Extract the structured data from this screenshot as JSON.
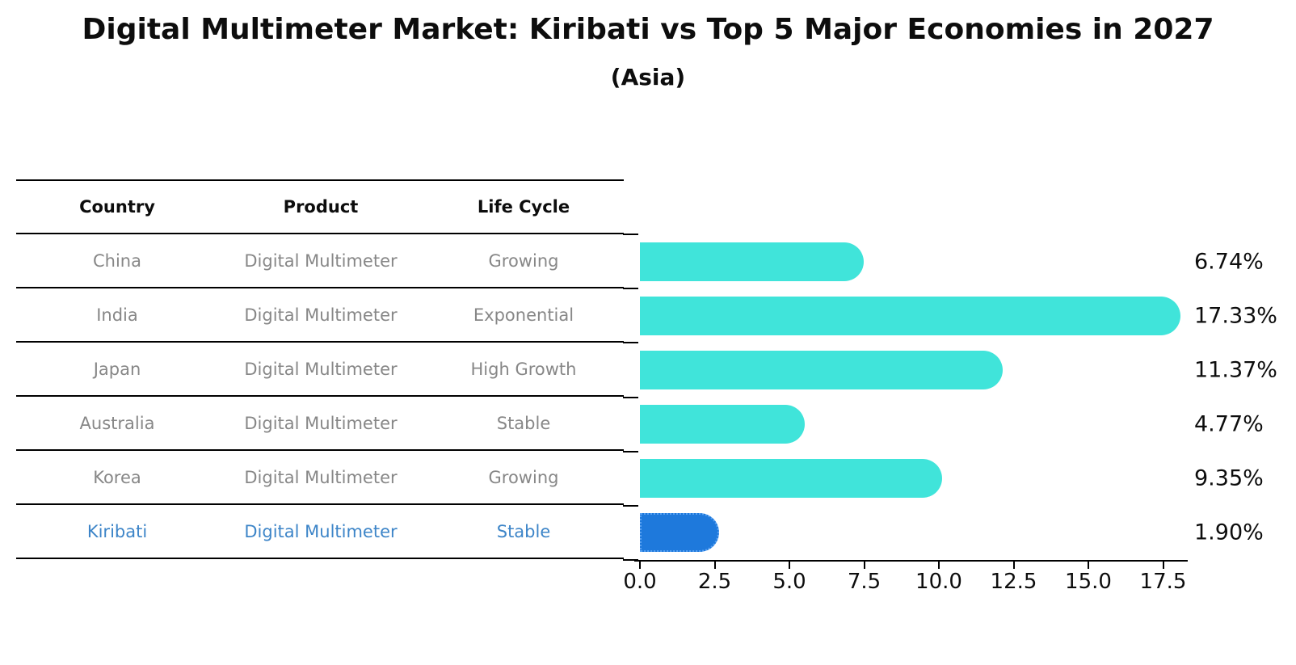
{
  "title": "Digital Multimeter Market: Kiribati vs Top 5 Major Economies in 2027",
  "subtitle": "(Asia)",
  "table": {
    "headers": [
      "Country",
      "Product",
      "Life Cycle"
    ],
    "rows": [
      {
        "country": "China",
        "product": "Digital Multimeter",
        "life_cycle": "Growing",
        "highlight": false
      },
      {
        "country": "India",
        "product": "Digital Multimeter",
        "life_cycle": "Exponential",
        "highlight": false
      },
      {
        "country": "Japan",
        "product": "Digital Multimeter",
        "life_cycle": "High Growth",
        "highlight": false
      },
      {
        "country": "Australia",
        "product": "Digital Multimeter",
        "life_cycle": "Stable",
        "highlight": false
      },
      {
        "country": "Korea",
        "product": "Digital Multimeter",
        "life_cycle": "Growing",
        "highlight": false
      },
      {
        "country": "Kiribati",
        "product": "Digital Multimeter",
        "life_cycle": "Stable",
        "highlight": true
      }
    ]
  },
  "chart_data": {
    "type": "bar",
    "orientation": "horizontal",
    "title": "Digital Multimeter Market: Kiribati vs Top 5 Major Economies in 2027",
    "subtitle": "(Asia)",
    "categories": [
      "China",
      "India",
      "Japan",
      "Australia",
      "Korea",
      "Kiribati"
    ],
    "values": [
      6.74,
      17.33,
      11.37,
      4.77,
      9.35,
      1.9
    ],
    "value_labels": [
      "6.74%",
      "17.33%",
      "11.37%",
      "4.77%",
      "9.35%",
      "1.90%"
    ],
    "xlim": [
      0,
      18.3
    ],
    "x_ticks": [
      0.0,
      2.5,
      5.0,
      7.5,
      10.0,
      12.5,
      15.0,
      17.5
    ],
    "x_tick_labels": [
      "0.0",
      "2.5",
      "5.0",
      "7.5",
      "10.0",
      "12.5",
      "15.0",
      "17.5"
    ],
    "grid": false,
    "legend": "none",
    "highlight_index": 5
  },
  "colors": {
    "bar": "#40E4DA",
    "highlight_bar": "#1E79DC",
    "highlight_bar_border": "#5AA2F2",
    "highlight_text": "#3d85c8",
    "table_text": "#878787",
    "heading_text": "#0d0d0d"
  }
}
